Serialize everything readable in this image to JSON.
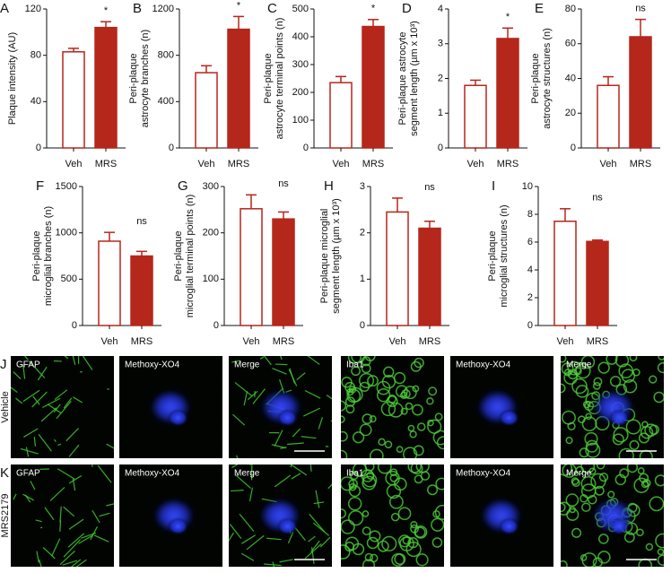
{
  "chart_data": [
    {
      "type": "bar",
      "panel": "A",
      "ylabel": [
        "Plaque intensity (AU)"
      ],
      "categories": [
        "Veh",
        "MRS"
      ],
      "values": [
        83,
        104
      ],
      "errors": [
        3,
        5
      ],
      "colors": [
        "#ffffff",
        "#b5271b"
      ],
      "edgecolor": "#b5271b",
      "ylim": [
        0,
        120
      ],
      "yticks": [
        0,
        40,
        80,
        120
      ],
      "annotation": "*"
    },
    {
      "type": "bar",
      "panel": "B",
      "ylabel": [
        "Peri-plaque",
        "astrocyte branches (n)"
      ],
      "categories": [
        "Veh",
        "MRS"
      ],
      "values": [
        650,
        1025
      ],
      "errors": [
        60,
        110
      ],
      "colors": [
        "#ffffff",
        "#b5271b"
      ],
      "edgecolor": "#b5271b",
      "ylim": [
        0,
        1200
      ],
      "yticks": [
        0,
        400,
        800,
        1200
      ],
      "annotation": "*"
    },
    {
      "type": "bar",
      "panel": "C",
      "ylabel": [
        "Peri-plaque",
        "astrocyte terminal points (n)"
      ],
      "categories": [
        "Veh",
        "MRS"
      ],
      "values": [
        235,
        437
      ],
      "errors": [
        22,
        25
      ],
      "colors": [
        "#ffffff",
        "#b5271b"
      ],
      "edgecolor": "#b5271b",
      "ylim": [
        0,
        500
      ],
      "yticks": [
        0,
        100,
        200,
        300,
        400,
        500
      ],
      "annotation": "*"
    },
    {
      "type": "bar",
      "panel": "D",
      "ylabel": [
        "Peri-plaque astrocyte",
        "segment length (µm x 10³)"
      ],
      "categories": [
        "Veh",
        "MRS"
      ],
      "values": [
        1.8,
        3.15
      ],
      "errors": [
        0.15,
        0.3
      ],
      "colors": [
        "#ffffff",
        "#b5271b"
      ],
      "edgecolor": "#b5271b",
      "ylim": [
        0,
        4
      ],
      "yticks": [
        0,
        1,
        2,
        3,
        4
      ],
      "annotation": "*"
    },
    {
      "type": "bar",
      "panel": "E",
      "ylabel": [
        "Peri-plaque",
        "astrocyte structures (n)"
      ],
      "categories": [
        "Veh",
        "MRS"
      ],
      "values": [
        36,
        64
      ],
      "errors": [
        5,
        10
      ],
      "colors": [
        "#ffffff",
        "#b5271b"
      ],
      "edgecolor": "#b5271b",
      "ylim": [
        0,
        80
      ],
      "yticks": [
        0,
        20,
        40,
        60,
        80
      ],
      "annotation": "ns"
    },
    {
      "type": "bar",
      "panel": "F",
      "ylabel": [
        "Peri-plaque",
        "microglial branches (n)"
      ],
      "categories": [
        "Veh",
        "MRS"
      ],
      "values": [
        910,
        750
      ],
      "errors": [
        95,
        50
      ],
      "colors": [
        "#ffffff",
        "#b5271b"
      ],
      "edgecolor": "#b5271b",
      "ylim": [
        0,
        1500
      ],
      "yticks": [
        0,
        500,
        1000,
        1500
      ],
      "annotation": "ns"
    },
    {
      "type": "bar",
      "panel": "G",
      "ylabel": [
        "Peri-plaque",
        "microglial terminal points (n)"
      ],
      "categories": [
        "Veh",
        "MRS"
      ],
      "values": [
        252,
        230
      ],
      "errors": [
        30,
        15
      ],
      "colors": [
        "#ffffff",
        "#b5271b"
      ],
      "edgecolor": "#b5271b",
      "ylim": [
        0,
        300
      ],
      "yticks": [
        0,
        100,
        200,
        300
      ],
      "annotation": "ns"
    },
    {
      "type": "bar",
      "panel": "H",
      "ylabel": [
        "Peri-plaque microglial",
        "segment length (µm x 10³)"
      ],
      "categories": [
        "Veh",
        "MRS"
      ],
      "values": [
        2.45,
        2.1
      ],
      "errors": [
        0.3,
        0.15
      ],
      "colors": [
        "#ffffff",
        "#b5271b"
      ],
      "edgecolor": "#b5271b",
      "ylim": [
        0,
        3
      ],
      "yticks": [
        0,
        1,
        2,
        3
      ],
      "annotation": "ns"
    },
    {
      "type": "bar",
      "panel": "I",
      "ylabel": [
        "Peri-plaque",
        "microglial structures (n)"
      ],
      "categories": [
        "Veh",
        "MRS"
      ],
      "values": [
        7.5,
        6.05
      ],
      "errors": [
        0.9,
        0.1
      ],
      "colors": [
        "#ffffff",
        "#b5271b"
      ],
      "edgecolor": "#b5271b",
      "ylim": [
        0,
        10
      ],
      "yticks": [
        0,
        2,
        4,
        6,
        8,
        10
      ],
      "annotation": "ns"
    }
  ],
  "images": {
    "rows": [
      {
        "panel": "J",
        "label": "Vehicle",
        "tiles": [
          "GFAP",
          "Methoxy-XO4",
          "Merge",
          "Iba1",
          "Methoxy-XO4",
          "Merge"
        ]
      },
      {
        "panel": "K",
        "label": "MRS2179",
        "tiles": [
          "GFAP",
          "Methoxy-XO4",
          "Merge",
          "Iba1",
          "Methoxy-XO4",
          "Merge"
        ]
      }
    ]
  }
}
